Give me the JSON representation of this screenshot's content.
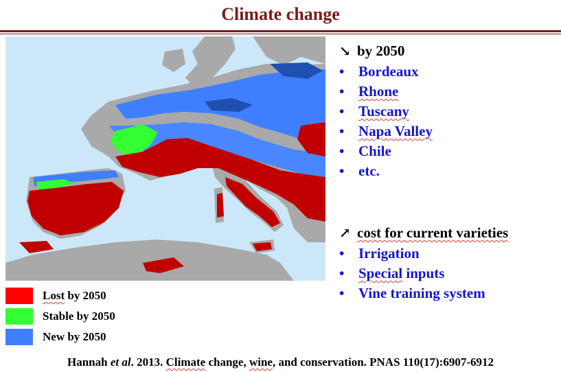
{
  "slide": {
    "title": "Climate change"
  },
  "colors": {
    "title": "#7a1a1a",
    "bullet_text": "#1414d2",
    "sea": "#cce8f8",
    "land": "#a9a9a9",
    "lost": "#c00000",
    "stable": "#33ff33",
    "new": "#3f7fff",
    "new_dark": "#1f4fb0"
  },
  "decrease_list": {
    "heading": "by 2050",
    "heading_icon": "arrow-down-right-icon",
    "items": [
      "Bordeaux",
      "Rhone",
      "Tuscany",
      "Napa Valley",
      "Chile",
      "etc."
    ]
  },
  "increase_list": {
    "heading_pre": "cost for ",
    "heading_underlined": "current varieties",
    "heading_icon": "arrow-up-right-icon",
    "items": [
      {
        "underlined": "",
        "rest": "Irrigation"
      },
      {
        "underlined": "Special",
        "rest": " inputs"
      },
      {
        "underlined": "",
        "rest": "Vine training system"
      }
    ]
  },
  "legend": [
    {
      "label": "Lost by 2050",
      "color": "#ff0000",
      "underlined": "Lost",
      "rest": " by 2050"
    },
    {
      "label": "Stable by 2050",
      "color": "#33ff33",
      "underlined": "",
      "rest": "Stable by 2050"
    },
    {
      "label": "New by 2050",
      "color": "#3f7fff",
      "underlined": "",
      "rest": "New by 2050"
    }
  ],
  "citation": {
    "author": "Hannah ",
    "et_al": "et al",
    "year": ". 2013. ",
    "title_u": "Climate",
    "title_rest": " change, ",
    "wine_u": "wine",
    "tail": ", and conservation. PNAS 110(17):6907-6912"
  }
}
